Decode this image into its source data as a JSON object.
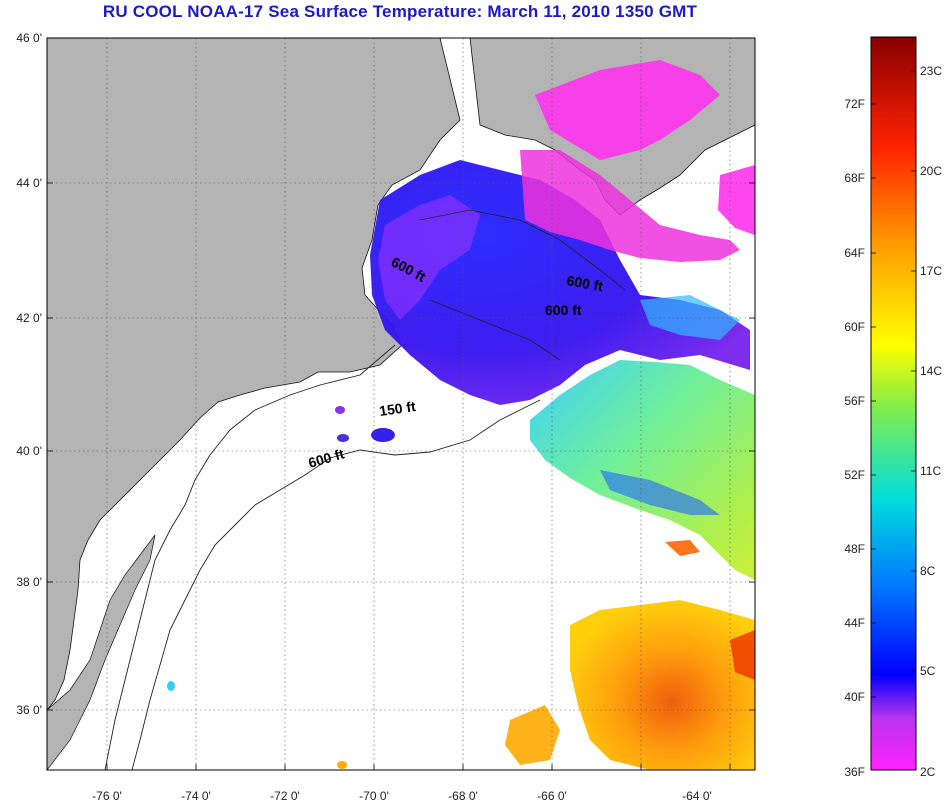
{
  "title": "RU COOL  NOAA-17  Sea Surface Temperature:  March 11, 2010 1350 GMT",
  "axes": {
    "lat_labels": [
      "46 0'",
      "44 0'",
      "42 0'",
      "40 0'",
      "38 0'",
      "36 0'"
    ],
    "lon_labels": [
      "-76 0'",
      "-74 0'",
      "-72 0'",
      "-70 0'",
      "-68 0'",
      "-66 0'",
      "-64 0'"
    ]
  },
  "depth_labels": [
    "600 ft",
    "600 ft",
    "600 ft",
    "150 ft",
    "600 ft"
  ],
  "colorbar": {
    "fahrenheit": [
      "72F",
      "68F",
      "64F",
      "60F",
      "56F",
      "52F",
      "48F",
      "44F",
      "40F",
      "36F"
    ],
    "celsius": [
      "23C",
      "20C",
      "17C",
      "14C",
      "11C",
      "8C",
      "5C",
      "2C"
    ]
  },
  "colors": {
    "land": "#b4b4b4",
    "cloud": "#ffffff",
    "title": "#1a1acc"
  }
}
